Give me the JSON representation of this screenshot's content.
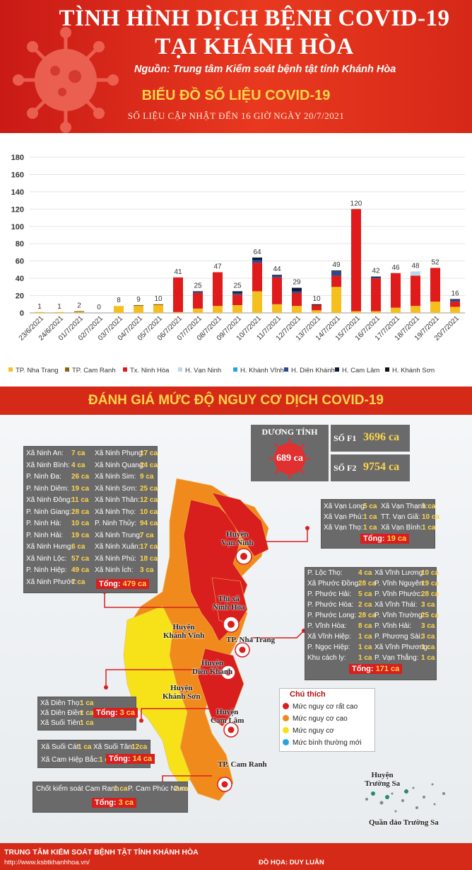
{
  "header": {
    "title_line1": "TÌNH HÌNH DỊCH BỆNH COVID-19",
    "title_line2": "TẠI KHÁNH HÒA",
    "source": "Nguồn: Trung tâm Kiểm soát bệnh tật tỉnh Khánh Hòa",
    "chart_title": "BIỂU ĐỒ SỐ LIỆU COVID-19",
    "update": "SỐ LIỆU CẬP NHẬT ĐẾN 16 GIỜ NGÀY 20/7/2021"
  },
  "colors": {
    "nha_trang": "#f5c01f",
    "cam_ranh": "#8a6510",
    "ninh_hoa": "#e01b1b",
    "van_ninh": "#bcd8ee",
    "khanh_vinh": "#27a3e0",
    "dien_khanh": "#2a4a8c",
    "cam_lam": "#0f1a3a",
    "khanh_son": "#111111"
  },
  "chart_data": {
    "type": "bar",
    "stacked": true,
    "categories": [
      "23/6/2021",
      "24/6/2021",
      "01/7/2021",
      "02/7/2021",
      "03/7/2021",
      "04/7/2021",
      "05/7/2021",
      "06/7/2021",
      "07/7/2021",
      "08/7/2021",
      "09/7/2021",
      "10/7/2021",
      "11/7/2021",
      "12/7/2021",
      "13/7/2021",
      "14/7/2021",
      "15/7/2021",
      "16/7/2021",
      "17/7/2021",
      "18/7/2021",
      "19/7/2021",
      "20/7/2021"
    ],
    "totals": [
      1,
      1,
      2,
      0,
      8,
      9,
      10,
      41,
      25,
      47,
      25,
      64,
      44,
      29,
      10,
      49,
      120,
      42,
      46,
      48,
      52,
      16
    ],
    "ylim": [
      0,
      180
    ],
    "yticks": [
      0,
      20,
      40,
      60,
      80,
      100,
      120,
      140,
      160,
      180
    ],
    "grid": true,
    "legend_position": "bottom",
    "series": [
      {
        "name": "TP. Nha Trang",
        "color": "#f5c01f",
        "values": [
          1,
          1,
          1,
          0,
          8,
          8,
          9,
          1,
          5,
          8,
          9,
          25,
          10,
          8,
          3,
          30,
          2,
          2,
          6,
          8,
          13,
          7
        ]
      },
      {
        "name": "TP. Cam Ranh",
        "color": "#8a6510",
        "values": [
          0,
          0,
          1,
          0,
          0,
          1,
          1,
          0,
          0,
          0,
          0,
          0,
          0,
          0,
          0,
          0,
          0,
          0,
          0,
          0,
          0,
          0
        ]
      },
      {
        "name": "Tx. Ninh Hòa",
        "color": "#e01b1b",
        "values": [
          0,
          0,
          0,
          0,
          0,
          0,
          0,
          40,
          18,
          39,
          12,
          33,
          31,
          15,
          6,
          13,
          118,
          38,
          40,
          35,
          39,
          6
        ]
      },
      {
        "name": "H. Vạn Ninh",
        "color": "#bcd8ee",
        "values": [
          0,
          0,
          0,
          0,
          0,
          0,
          0,
          0,
          0,
          0,
          0,
          0,
          0,
          0,
          0,
          0,
          0,
          0,
          0,
          5,
          0,
          0
        ]
      },
      {
        "name": "H. Khánh Vĩnh",
        "color": "#27a3e0",
        "values": [
          0,
          0,
          0,
          0,
          0,
          0,
          0,
          0,
          0,
          0,
          0,
          0,
          0,
          0,
          0,
          0,
          0,
          0,
          0,
          0,
          0,
          0
        ]
      },
      {
        "name": "H. Diên Khánh",
        "color": "#2a4a8c",
        "values": [
          0,
          0,
          0,
          0,
          0,
          0,
          0,
          0,
          1,
          0,
          2,
          3,
          2,
          2,
          0,
          5,
          0,
          1,
          0,
          0,
          0,
          2
        ]
      },
      {
        "name": "H. Cam Lâm",
        "color": "#0f1a3a",
        "values": [
          0,
          0,
          0,
          0,
          0,
          0,
          0,
          0,
          1,
          0,
          2,
          3,
          1,
          4,
          1,
          1,
          0,
          1,
          0,
          0,
          0,
          1
        ]
      },
      {
        "name": "H. Khánh Sơn",
        "color": "#111111",
        "values": [
          0,
          0,
          0,
          0,
          0,
          0,
          0,
          0,
          0,
          0,
          0,
          0,
          0,
          0,
          0,
          0,
          0,
          0,
          0,
          0,
          0,
          0
        ]
      }
    ]
  },
  "map_section": {
    "title": "ĐÁNH GIÁ MỨC ĐỘ NGUY CƠ DỊCH COVID-19",
    "positive_label": "DƯƠNG TÍNH",
    "positive_value": "689 ca",
    "f1_label": "SỐ F1",
    "f1_value": "3696 ca",
    "f2_label": "SỐ F2",
    "f2_value": "9754 ca"
  },
  "ninh_hoa_box": {
    "left": [
      {
        "name": "Xã Ninh An:",
        "value": "7 ca"
      },
      {
        "name": "Xã Ninh Bình:",
        "value": "4 ca"
      },
      {
        "name": "P. Ninh Đa:",
        "value": "26 ca"
      },
      {
        "name": "P. Ninh Diêm:",
        "value": "19 ca"
      },
      {
        "name": "Xã Ninh Đông:",
        "value": "11 ca"
      },
      {
        "name": "P. Ninh Giang:",
        "value": "28 ca"
      },
      {
        "name": "P. Ninh Hà:",
        "value": "10 ca"
      },
      {
        "name": "P. Ninh Hải:",
        "value": "19 ca"
      },
      {
        "name": "Xã Ninh Hưng:",
        "value": "6 ca"
      },
      {
        "name": "Xã Ninh Lộc:",
        "value": "57 ca"
      },
      {
        "name": "P. Ninh Hiệp:",
        "value": "49 ca"
      },
      {
        "name": "Xã Ninh Phước:",
        "value": "7 ca"
      }
    ],
    "right": [
      {
        "name": "Xã Ninh Phụng:",
        "value": "17 ca"
      },
      {
        "name": "Xã Ninh Quang:",
        "value": "24 ca"
      },
      {
        "name": "Xã Ninh Sim:",
        "value": "9 ca"
      },
      {
        "name": "Xã Ninh Sơn:",
        "value": "25 ca"
      },
      {
        "name": "Xã Ninh Thân:",
        "value": "12 ca"
      },
      {
        "name": "Xã Ninh Thọ:",
        "value": "10 ca"
      },
      {
        "name": "P. Ninh Thủy:",
        "value": "94 ca"
      },
      {
        "name": "Xã Ninh Trung:",
        "value": "7 ca"
      },
      {
        "name": "Xã Ninh Xuân:",
        "value": "17 ca"
      },
      {
        "name": "Xã Ninh Phú:",
        "value": "18 ca"
      },
      {
        "name": "Xã Ninh Ích:",
        "value": "3 ca"
      }
    ],
    "total_label": "Tổng:",
    "total_value": "479 ca"
  },
  "van_ninh_box": {
    "rows": [
      {
        "a": "Xã Vạn Long:",
        "av": "5 ca",
        "b": "Xã Vạn Thạnh:",
        "bv": "1 ca"
      },
      {
        "a": "Xã Vạn Phú:",
        "av": "1 ca",
        "b": "TT. Vạn Giã:",
        "bv": "10 ca"
      },
      {
        "a": "Xã Vạn Thọ:",
        "av": "1 ca",
        "b": "Xã Vạn Bình:",
        "bv": "1 ca"
      }
    ],
    "total_label": "Tổng:",
    "total_value": "19 ca"
  },
  "nha_trang_box": {
    "left": [
      {
        "name": "P. Lộc Thọ:",
        "value": "4 ca"
      },
      {
        "name": "Xã Phước Đồng:",
        "value": "28 ca"
      },
      {
        "name": "P. Phước Hải:",
        "value": "5 ca"
      },
      {
        "name": "P. Phước Hòa:",
        "value": "2 ca"
      },
      {
        "name": "P. Phước Long:",
        "value": "28 ca"
      },
      {
        "name": "P. Vĩnh Hòa:",
        "value": "8 ca"
      },
      {
        "name": "Xã Vĩnh Hiệp:",
        "value": "1 ca"
      },
      {
        "name": "P. Ngọc Hiệp:",
        "value": "1 ca"
      },
      {
        "name": "Khu cách ly:",
        "value": "1 ca"
      }
    ],
    "right": [
      {
        "name": "Xã Vĩnh Lương:",
        "value": "10 ca"
      },
      {
        "name": "P. Vĩnh Nguyên:",
        "value": "19 ca"
      },
      {
        "name": "P. Vĩnh Phước:",
        "value": "28 ca"
      },
      {
        "name": "Xã Vĩnh Thái:",
        "value": "3 ca"
      },
      {
        "name": "P. Vĩnh Trường:",
        "value": "25 ca"
      },
      {
        "name": "P. Vĩnh Hải:",
        "value": "3 ca"
      },
      {
        "name": "P. Phương Sài:",
        "value": "3 ca"
      },
      {
        "name": "Xã Vĩnh Phương:",
        "value": "1 ca"
      },
      {
        "name": "P. Vạn Thắng:",
        "value": "1 ca"
      }
    ],
    "total_label": "Tổng:",
    "total_value": "171 ca"
  },
  "dien_khanh_box": {
    "rows": [
      {
        "name": "Xã Diên Thọ:",
        "value": "1 ca"
      },
      {
        "name": "Xã Diên Điền:",
        "value": "1 ca"
      },
      {
        "name": "Xã Suối Tiên:",
        "value": "1 ca"
      }
    ],
    "total_label": "Tổng:",
    "total_value": "3 ca"
  },
  "cam_lam_box": {
    "a": "Xã Suối Cát:",
    "av": "1 ca",
    "b": "Xã Suối Tân:",
    "bv": "12ca",
    "c": "Xã Cam Hiệp Bắc:",
    "cv": "1 ca",
    "total_label": "Tổng:",
    "total_value": "14 ca"
  },
  "cam_ranh_box": {
    "a": "Chốt kiểm soát Cam Ranh :",
    "av": "1 ca",
    "b": "P. Cam Phúc Nam:",
    "bv": "2 ca",
    "total_label": "Tổng:",
    "total_value": "3 ca"
  },
  "places": {
    "van_ninh": "Huyện\nVạn Ninh",
    "ninh_hoa": "Thị xã\nNinh Hòa",
    "khanh_vinh": "Huyện\nKhánh Vĩnh",
    "nha_trang": "TP. Nha Trang",
    "dien_khanh": "Huyện\nDiên Khánh",
    "khanh_son": "Huyện\nKhánh Sơn",
    "cam_lam": "Huyện\nCam Lâm",
    "cam_ranh": "TP. Cam Ranh",
    "truong_sa": "Huyện\nTrường Sa",
    "truong_sa_islands": "Quần đảo Trường Sa"
  },
  "notes": {
    "title": "Chú thích",
    "items": [
      {
        "label": "Mức nguy cơ rất cao",
        "color": "#d91e1e"
      },
      {
        "label": "Mức nguy cơ cao",
        "color": "#f08a1c"
      },
      {
        "label": "Mức nguy cơ",
        "color": "#f7e21a"
      },
      {
        "label": "Mức bình thường mới",
        "color": "#27a3e0"
      }
    ]
  },
  "footer": {
    "org": "TRUNG TÂM KIỂM SOÁT BỆNH TẬT TỈNH KHÁNH HÒA",
    "url": "http://www.ksbtkhanhhoa.vn/",
    "credit": "ĐỒ HỌA: DUY LUÂN"
  }
}
